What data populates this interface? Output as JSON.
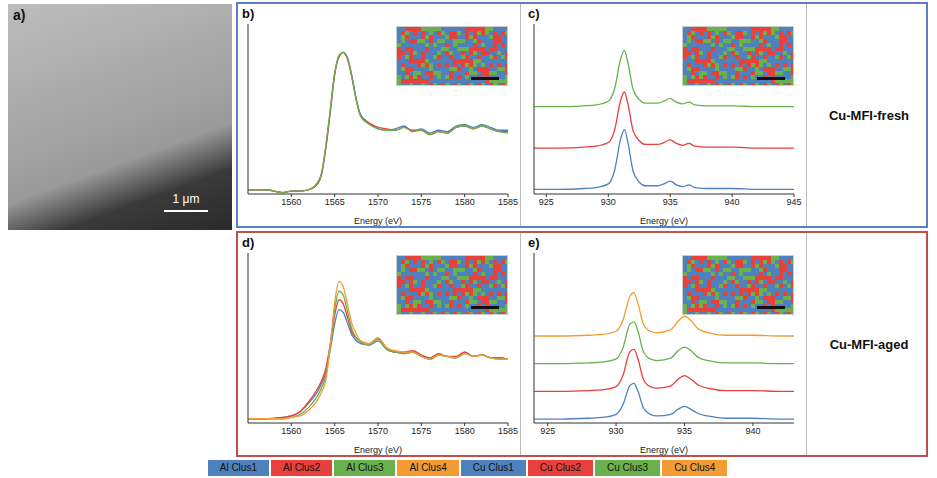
{
  "image": {
    "panel": "a)",
    "scale_bar": "1 μm"
  },
  "row_labels": [
    "Cu-MFI-fresh",
    "Cu-MFI-aged"
  ],
  "chart_data": [
    {
      "panel": "b)",
      "type": "line",
      "x_label": "Energy (eV)",
      "x": [
        1555,
        1557,
        1559,
        1560,
        1561,
        1562,
        1563,
        1563.5,
        1564,
        1564.5,
        1565,
        1565.5,
        1566,
        1566.5,
        1567,
        1567.5,
        1568,
        1569,
        1570,
        1571,
        1572,
        1573,
        1574,
        1575,
        1576,
        1577,
        1578,
        1579,
        1580,
        1581,
        1582,
        1583,
        1584,
        1585
      ],
      "xlim": [
        1555,
        1585
      ],
      "xticks": [
        1560,
        1565,
        1570,
        1575,
        1580,
        1585
      ],
      "ylim": [
        0,
        1.2
      ],
      "tick_labels": "x",
      "series": [
        {
          "name": "Al Clus1",
          "color": "#4f81bd",
          "values": [
            0.03,
            0.03,
            0.01,
            0.02,
            0.02,
            0.03,
            0.07,
            0.14,
            0.33,
            0.58,
            0.84,
            0.97,
            1.0,
            0.96,
            0.83,
            0.67,
            0.56,
            0.5,
            0.46,
            0.45,
            0.46,
            0.48,
            0.44,
            0.46,
            0.43,
            0.45,
            0.44,
            0.48,
            0.49,
            0.47,
            0.49,
            0.47,
            0.45,
            0.45
          ]
        },
        {
          "name": "Al Clus2",
          "color": "#e8413c",
          "values": [
            0.03,
            0.03,
            0.01,
            0.02,
            0.02,
            0.03,
            0.07,
            0.15,
            0.34,
            0.59,
            0.85,
            0.97,
            1.0,
            0.95,
            0.82,
            0.66,
            0.55,
            0.5,
            0.47,
            0.46,
            0.45,
            0.47,
            0.45,
            0.45,
            0.42,
            0.44,
            0.43,
            0.47,
            0.48,
            0.46,
            0.48,
            0.46,
            0.44,
            0.44
          ]
        },
        {
          "name": "Al Clus3",
          "color": "#6ab04c",
          "values": [
            0.03,
            0.03,
            0.01,
            0.02,
            0.02,
            0.03,
            0.08,
            0.15,
            0.35,
            0.6,
            0.85,
            0.98,
            1.0,
            0.95,
            0.82,
            0.66,
            0.55,
            0.49,
            0.46,
            0.45,
            0.45,
            0.47,
            0.44,
            0.45,
            0.42,
            0.44,
            0.43,
            0.47,
            0.48,
            0.46,
            0.48,
            0.46,
            0.44,
            0.43
          ]
        }
      ]
    },
    {
      "panel": "c)",
      "type": "line",
      "x_label": "Energy (eV)",
      "x": [
        924,
        926,
        928,
        929,
        930,
        930.5,
        931,
        931.3,
        931.6,
        932,
        932.5,
        933,
        934,
        934.5,
        935,
        935.5,
        936,
        936.5,
        937,
        938,
        940,
        942,
        945
      ],
      "xlim": [
        924,
        945
      ],
      "xticks": [
        925,
        930,
        935,
        940,
        945
      ],
      "ylim": [
        -0.05,
        1.8
      ],
      "tick_labels": "x",
      "series": [
        {
          "name": "Cu Clus1",
          "color": "#4f81bd",
          "values": [
            0,
            0,
            0.01,
            0.02,
            0.06,
            0.2,
            0.55,
            0.65,
            0.5,
            0.2,
            0.08,
            0.04,
            0.04,
            0.06,
            0.09,
            0.05,
            0.03,
            0.05,
            0.02,
            0.01,
            0.01,
            0,
            0
          ]
        },
        {
          "name": "Cu Clus2",
          "color": "#e8413c",
          "values": [
            0.45,
            0.45,
            0.46,
            0.47,
            0.51,
            0.64,
            0.97,
            1.06,
            0.92,
            0.64,
            0.53,
            0.49,
            0.49,
            0.51,
            0.54,
            0.5,
            0.48,
            0.5,
            0.47,
            0.46,
            0.46,
            0.45,
            0.45
          ]
        },
        {
          "name": "Cu Clus3",
          "color": "#6ab04c",
          "values": [
            0.9,
            0.9,
            0.91,
            0.92,
            0.96,
            1.09,
            1.42,
            1.51,
            1.37,
            1.09,
            0.98,
            0.94,
            0.94,
            0.96,
            0.99,
            0.95,
            0.93,
            0.95,
            0.92,
            0.91,
            0.91,
            0.9,
            0.9
          ]
        }
      ]
    },
    {
      "panel": "d)",
      "type": "line",
      "x_label": "Energy (eV)",
      "x": [
        1555,
        1557,
        1559,
        1560,
        1561,
        1562,
        1563,
        1563.5,
        1564,
        1564.5,
        1565,
        1565.5,
        1566,
        1566.5,
        1567,
        1567.5,
        1568,
        1569,
        1570,
        1571,
        1572,
        1573,
        1574,
        1575,
        1576,
        1577,
        1578,
        1579,
        1580,
        1581,
        1582,
        1583,
        1584,
        1585
      ],
      "xlim": [
        1555,
        1585
      ],
      "xticks": [
        1560,
        1565,
        1570,
        1575,
        1580,
        1585
      ],
      "ylim": [
        0,
        1.2
      ],
      "tick_labels": "x",
      "series": [
        {
          "name": "Al Clus1",
          "color": "#4f81bd",
          "values": [
            0.03,
            0.03,
            0.04,
            0.05,
            0.08,
            0.14,
            0.22,
            0.28,
            0.36,
            0.52,
            0.7,
            0.8,
            0.78,
            0.7,
            0.62,
            0.58,
            0.56,
            0.55,
            0.58,
            0.52,
            0.5,
            0.49,
            0.5,
            0.47,
            0.45,
            0.48,
            0.47,
            0.46,
            0.5,
            0.47,
            0.48,
            0.46,
            0.46,
            0.45
          ]
        },
        {
          "name": "Al Clus2",
          "color": "#e8413c",
          "values": [
            0.03,
            0.03,
            0.04,
            0.05,
            0.08,
            0.15,
            0.24,
            0.3,
            0.39,
            0.56,
            0.76,
            0.87,
            0.84,
            0.74,
            0.64,
            0.6,
            0.57,
            0.56,
            0.6,
            0.53,
            0.5,
            0.5,
            0.51,
            0.48,
            0.46,
            0.49,
            0.47,
            0.47,
            0.5,
            0.47,
            0.48,
            0.46,
            0.46,
            0.45
          ]
        },
        {
          "name": "Al Clus3",
          "color": "#6ab04c",
          "values": [
            0.03,
            0.03,
            0.03,
            0.04,
            0.06,
            0.11,
            0.19,
            0.25,
            0.34,
            0.55,
            0.8,
            0.93,
            0.9,
            0.78,
            0.66,
            0.6,
            0.57,
            0.55,
            0.59,
            0.52,
            0.5,
            0.49,
            0.5,
            0.47,
            0.45,
            0.48,
            0.47,
            0.46,
            0.49,
            0.47,
            0.48,
            0.46,
            0.45,
            0.45
          ]
        },
        {
          "name": "Al Clus4",
          "color": "#f39c34",
          "values": [
            0.03,
            0.03,
            0.03,
            0.04,
            0.05,
            0.09,
            0.16,
            0.22,
            0.31,
            0.55,
            0.85,
            1.0,
            0.96,
            0.83,
            0.7,
            0.63,
            0.58,
            0.56,
            0.6,
            0.53,
            0.51,
            0.5,
            0.5,
            0.47,
            0.45,
            0.48,
            0.47,
            0.46,
            0.49,
            0.47,
            0.48,
            0.46,
            0.45,
            0.45
          ]
        }
      ]
    },
    {
      "panel": "e)",
      "type": "line",
      "x_label": "Energy (eV)",
      "x": [
        924,
        926,
        928,
        929,
        930,
        930.5,
        931,
        931.3,
        931.6,
        932,
        932.5,
        933,
        934,
        934.5,
        935,
        935.5,
        936,
        937,
        938,
        940,
        942,
        943
      ],
      "xlim": [
        924,
        943
      ],
      "xticks": [
        925,
        930,
        935,
        940
      ],
      "ylim": [
        -0.05,
        2.1
      ],
      "tick_labels": "x",
      "series": [
        {
          "name": "Cu Clus1",
          "color": "#4f81bd",
          "values": [
            0,
            0,
            0.01,
            0.02,
            0.06,
            0.18,
            0.42,
            0.45,
            0.35,
            0.14,
            0.06,
            0.04,
            0.06,
            0.12,
            0.16,
            0.12,
            0.07,
            0.03,
            0.01,
            0.01,
            0,
            0
          ]
        },
        {
          "name": "Cu Clus2",
          "color": "#e8413c",
          "values": [
            0.35,
            0.35,
            0.36,
            0.37,
            0.41,
            0.55,
            0.85,
            0.88,
            0.76,
            0.5,
            0.41,
            0.39,
            0.42,
            0.5,
            0.55,
            0.5,
            0.43,
            0.38,
            0.36,
            0.36,
            0.35,
            0.35
          ]
        },
        {
          "name": "Cu Clus3",
          "color": "#6ab04c",
          "values": [
            0.7,
            0.7,
            0.71,
            0.72,
            0.76,
            0.9,
            1.2,
            1.23,
            1.11,
            0.85,
            0.76,
            0.74,
            0.77,
            0.86,
            0.91,
            0.86,
            0.78,
            0.73,
            0.71,
            0.71,
            0.7,
            0.7
          ]
        },
        {
          "name": "Cu Clus4",
          "color": "#f39c34",
          "values": [
            1.05,
            1.05,
            1.06,
            1.07,
            1.11,
            1.25,
            1.55,
            1.6,
            1.46,
            1.2,
            1.11,
            1.09,
            1.13,
            1.23,
            1.3,
            1.24,
            1.14,
            1.08,
            1.06,
            1.06,
            1.05,
            1.05
          ]
        }
      ]
    }
  ]
}
